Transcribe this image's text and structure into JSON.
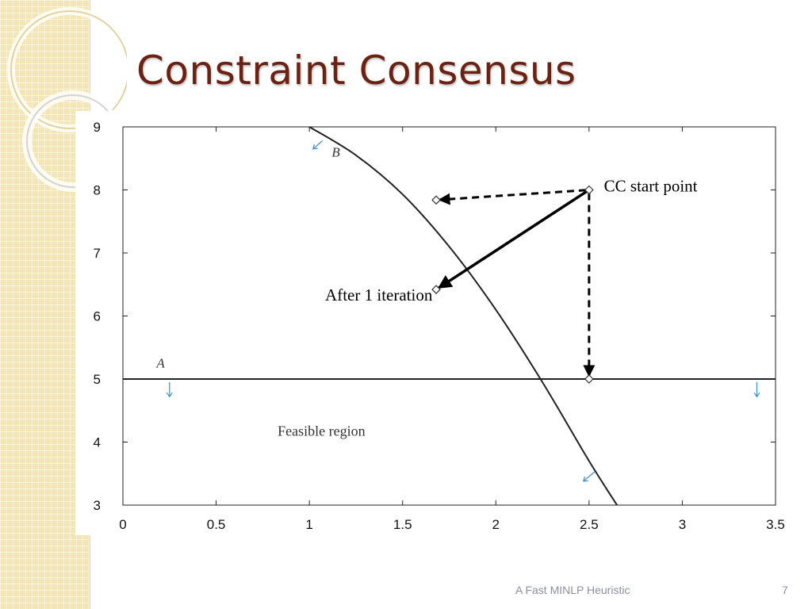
{
  "slide": {
    "title": "Constraint Consensus",
    "footer": "A Fast MINLP Heuristic",
    "page_number": "7"
  },
  "colors": {
    "title": "#6b2213",
    "side_strip": "#f4e6b3",
    "curve": "#222222",
    "normal_arrow": "#3b8fd0"
  },
  "chart_data": {
    "type": "line",
    "xlim": [
      0,
      3.5
    ],
    "ylim": [
      3,
      9
    ],
    "x_ticks": [
      "0",
      "0.5",
      "1",
      "1.5",
      "2",
      "2.5",
      "3",
      "3.5"
    ],
    "y_ticks": [
      "3",
      "4",
      "5",
      "6",
      "7",
      "8",
      "9"
    ],
    "grid": false,
    "constraints": [
      {
        "label": "A",
        "kind": "horizontal",
        "y": 5,
        "x_range": [
          0,
          3.5
        ]
      },
      {
        "label": "B",
        "kind": "curve",
        "points": [
          [
            1.0,
            9.0
          ],
          [
            1.25,
            8.55
          ],
          [
            1.5,
            7.93
          ],
          [
            1.75,
            7.1
          ],
          [
            2.0,
            6.1
          ],
          [
            2.25,
            4.95
          ],
          [
            2.5,
            3.7
          ],
          [
            2.65,
            3.0
          ]
        ]
      }
    ],
    "points": [
      {
        "name": "cc-start",
        "x": 2.5,
        "y": 8.0
      },
      {
        "name": "after-iteration",
        "x": 1.68,
        "y": 6.42
      },
      {
        "name": "proj-b",
        "x": 1.68,
        "y": 7.84
      },
      {
        "name": "proj-a",
        "x": 2.5,
        "y": 5.0
      }
    ],
    "annotations": [
      {
        "name": "cc-start-label",
        "text": "CC start point",
        "x": 2.58,
        "y": 8.0
      },
      {
        "name": "after-iteration-label",
        "text": "After 1 iteration",
        "x": 1.66,
        "y": 6.42
      },
      {
        "name": "feasible-region-label",
        "text": "Feasible region",
        "x": 0.83,
        "y": 4.1
      },
      {
        "name": "constraint-a-label",
        "text": "A",
        "x": 0.18,
        "y": 5.18
      },
      {
        "name": "constraint-b-label",
        "text": "B",
        "x": 1.12,
        "y": 8.53
      }
    ]
  }
}
